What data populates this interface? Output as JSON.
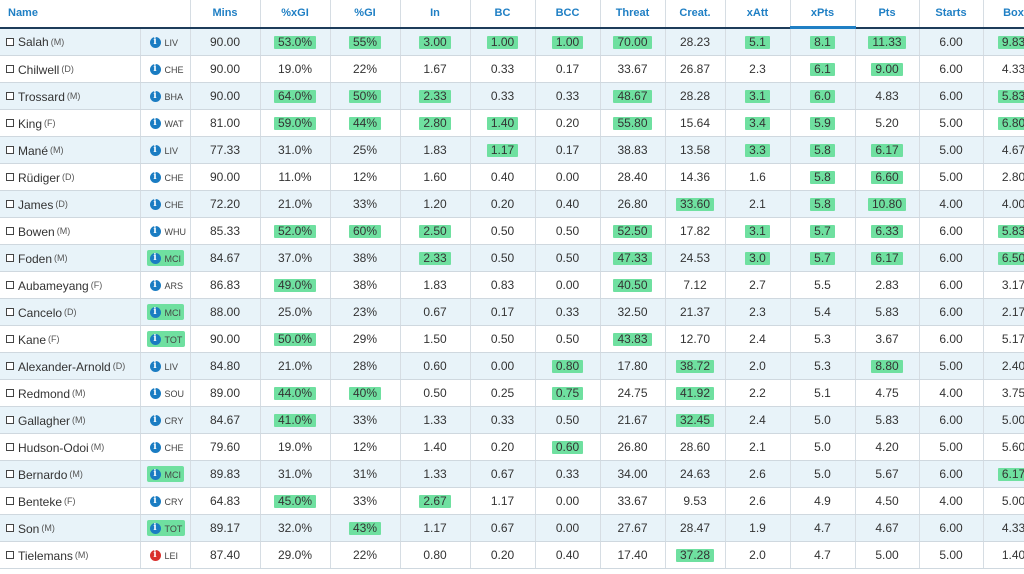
{
  "colors": {
    "header_text": "#1f7fc4",
    "highlight": "#6fe0a0",
    "info_blue": "#1a7cc2",
    "info_red": "#d9302c",
    "row_alt": "#e8f3f9"
  },
  "columns": [
    {
      "key": "name",
      "label": "Name"
    },
    {
      "key": "mins",
      "label": "Mins"
    },
    {
      "key": "xgi_pct",
      "label": "%xGI"
    },
    {
      "key": "gi_pct",
      "label": "%GI"
    },
    {
      "key": "in",
      "label": "In"
    },
    {
      "key": "bc",
      "label": "BC"
    },
    {
      "key": "bcc",
      "label": "BCC"
    },
    {
      "key": "threat",
      "label": "Threat"
    },
    {
      "key": "creat",
      "label": "Creat."
    },
    {
      "key": "xatt",
      "label": "xAtt"
    },
    {
      "key": "xpts",
      "label": "xPts"
    },
    {
      "key": "pts",
      "label": "Pts"
    },
    {
      "key": "starts",
      "label": "Starts"
    },
    {
      "key": "box",
      "label": "Box"
    }
  ],
  "sorted_column": "xpts",
  "rows": [
    {
      "name": "Salah",
      "pos": "(M)",
      "team": "LIV",
      "info": "blue",
      "mins": "90.00",
      "xgi_pct": "53.0%",
      "gi_pct": "55%",
      "in": "3.00",
      "bc": "1.00",
      "bcc": "1.00",
      "threat": "70.00",
      "creat": "28.23",
      "xatt": "5.1",
      "xpts": "8.1",
      "pts": "11.33",
      "starts": "6.00",
      "box": "9.83",
      "hl": [
        "xgi_pct",
        "gi_pct",
        "in",
        "bc",
        "bcc",
        "threat",
        "xatt",
        "xpts",
        "pts",
        "box"
      ]
    },
    {
      "name": "Chilwell",
      "pos": "(D)",
      "team": "CHE",
      "info": "blue",
      "mins": "90.00",
      "xgi_pct": "19.0%",
      "gi_pct": "22%",
      "in": "1.67",
      "bc": "0.33",
      "bcc": "0.17",
      "threat": "33.67",
      "creat": "26.87",
      "xatt": "2.3",
      "xpts": "6.1",
      "pts": "9.00",
      "starts": "6.00",
      "box": "4.33",
      "hl": [
        "xpts",
        "pts"
      ]
    },
    {
      "name": "Trossard",
      "pos": "(M)",
      "team": "BHA",
      "info": "blue",
      "mins": "90.00",
      "xgi_pct": "64.0%",
      "gi_pct": "50%",
      "in": "2.33",
      "bc": "0.33",
      "bcc": "0.33",
      "threat": "48.67",
      "creat": "28.28",
      "xatt": "3.1",
      "xpts": "6.0",
      "pts": "4.83",
      "starts": "6.00",
      "box": "5.83",
      "hl": [
        "xgi_pct",
        "gi_pct",
        "in",
        "threat",
        "xatt",
        "xpts",
        "box"
      ]
    },
    {
      "name": "King",
      "pos": "(F)",
      "team": "WAT",
      "info": "blue",
      "mins": "81.00",
      "xgi_pct": "59.0%",
      "gi_pct": "44%",
      "in": "2.80",
      "bc": "1.40",
      "bcc": "0.20",
      "threat": "55.80",
      "creat": "15.64",
      "xatt": "3.4",
      "xpts": "5.9",
      "pts": "5.20",
      "starts": "5.00",
      "box": "6.80",
      "hl": [
        "xgi_pct",
        "gi_pct",
        "in",
        "bc",
        "threat",
        "xatt",
        "xpts",
        "box"
      ]
    },
    {
      "name": "Mané",
      "pos": "(M)",
      "team": "LIV",
      "info": "blue",
      "mins": "77.33",
      "xgi_pct": "31.0%",
      "gi_pct": "25%",
      "in": "1.83",
      "bc": "1.17",
      "bcc": "0.17",
      "threat": "38.83",
      "creat": "13.58",
      "xatt": "3.3",
      "xpts": "5.8",
      "pts": "6.17",
      "starts": "5.00",
      "box": "4.67",
      "hl": [
        "bc",
        "xatt",
        "xpts",
        "pts"
      ]
    },
    {
      "name": "Rüdiger",
      "pos": "(D)",
      "team": "CHE",
      "info": "blue",
      "mins": "90.00",
      "xgi_pct": "11.0%",
      "gi_pct": "12%",
      "in": "1.60",
      "bc": "0.40",
      "bcc": "0.00",
      "threat": "28.40",
      "creat": "14.36",
      "xatt": "1.6",
      "xpts": "5.8",
      "pts": "6.60",
      "starts": "5.00",
      "box": "2.80",
      "hl": [
        "xpts",
        "pts"
      ]
    },
    {
      "name": "James",
      "pos": "(D)",
      "team": "CHE",
      "info": "blue",
      "mins": "72.20",
      "xgi_pct": "21.0%",
      "gi_pct": "33%",
      "in": "1.20",
      "bc": "0.20",
      "bcc": "0.40",
      "threat": "26.80",
      "creat": "33.60",
      "xatt": "2.1",
      "xpts": "5.8",
      "pts": "10.80",
      "starts": "4.00",
      "box": "4.00",
      "hl": [
        "creat",
        "xpts",
        "pts"
      ]
    },
    {
      "name": "Bowen",
      "pos": "(M)",
      "team": "WHU",
      "info": "blue",
      "mins": "85.33",
      "xgi_pct": "52.0%",
      "gi_pct": "60%",
      "in": "2.50",
      "bc": "0.50",
      "bcc": "0.50",
      "threat": "52.50",
      "creat": "17.82",
      "xatt": "3.1",
      "xpts": "5.7",
      "pts": "6.33",
      "starts": "6.00",
      "box": "5.83",
      "hl": [
        "xgi_pct",
        "gi_pct",
        "in",
        "threat",
        "xatt",
        "xpts",
        "pts",
        "box"
      ]
    },
    {
      "name": "Foden",
      "pos": "(M)",
      "team": "MCI",
      "info": "blue",
      "mins": "84.67",
      "xgi_pct": "37.0%",
      "gi_pct": "38%",
      "in": "2.33",
      "bc": "0.50",
      "bcc": "0.50",
      "threat": "47.33",
      "creat": "24.53",
      "xatt": "3.0",
      "xpts": "5.7",
      "pts": "6.17",
      "starts": "6.00",
      "box": "6.50",
      "hl": [
        "team",
        "in",
        "threat",
        "xatt",
        "xpts",
        "pts",
        "box"
      ]
    },
    {
      "name": "Aubameyang",
      "pos": "(F)",
      "team": "ARS",
      "info": "blue",
      "mins": "86.83",
      "xgi_pct": "49.0%",
      "gi_pct": "38%",
      "in": "1.83",
      "bc": "0.83",
      "bcc": "0.00",
      "threat": "40.50",
      "creat": "7.12",
      "xatt": "2.7",
      "xpts": "5.5",
      "pts": "2.83",
      "starts": "6.00",
      "box": "3.17",
      "hl": [
        "xgi_pct",
        "threat"
      ]
    },
    {
      "name": "Cancelo",
      "pos": "(D)",
      "team": "MCI",
      "info": "blue",
      "mins": "88.00",
      "xgi_pct": "25.0%",
      "gi_pct": "23%",
      "in": "0.67",
      "bc": "0.17",
      "bcc": "0.33",
      "threat": "32.50",
      "creat": "21.37",
      "xatt": "2.3",
      "xpts": "5.4",
      "pts": "5.83",
      "starts": "6.00",
      "box": "2.17",
      "hl": [
        "team"
      ]
    },
    {
      "name": "Kane",
      "pos": "(F)",
      "team": "TOT",
      "info": "blue",
      "mins": "90.00",
      "xgi_pct": "50.0%",
      "gi_pct": "29%",
      "in": "1.50",
      "bc": "0.50",
      "bcc": "0.50",
      "threat": "43.83",
      "creat": "12.70",
      "xatt": "2.4",
      "xpts": "5.3",
      "pts": "3.67",
      "starts": "6.00",
      "box": "5.17",
      "hl": [
        "team",
        "xgi_pct",
        "threat"
      ]
    },
    {
      "name": "Alexander-Arnold",
      "pos": "(D)",
      "team": "LIV",
      "info": "blue",
      "mins": "84.80",
      "xgi_pct": "21.0%",
      "gi_pct": "28%",
      "in": "0.60",
      "bc": "0.00",
      "bcc": "0.80",
      "threat": "17.80",
      "creat": "38.72",
      "xatt": "2.0",
      "xpts": "5.3",
      "pts": "8.80",
      "starts": "5.00",
      "box": "2.40",
      "hl": [
        "bcc",
        "creat",
        "pts"
      ]
    },
    {
      "name": "Redmond",
      "pos": "(M)",
      "team": "SOU",
      "info": "blue",
      "mins": "89.00",
      "xgi_pct": "44.0%",
      "gi_pct": "40%",
      "in": "0.50",
      "bc": "0.25",
      "bcc": "0.75",
      "threat": "24.75",
      "creat": "41.92",
      "xatt": "2.2",
      "xpts": "5.1",
      "pts": "4.75",
      "starts": "4.00",
      "box": "3.75",
      "hl": [
        "xgi_pct",
        "gi_pct",
        "bcc",
        "creat"
      ]
    },
    {
      "name": "Gallagher",
      "pos": "(M)",
      "team": "CRY",
      "info": "blue",
      "mins": "84.67",
      "xgi_pct": "41.0%",
      "gi_pct": "33%",
      "in": "1.33",
      "bc": "0.33",
      "bcc": "0.50",
      "threat": "21.67",
      "creat": "32.45",
      "xatt": "2.4",
      "xpts": "5.0",
      "pts": "5.83",
      "starts": "6.00",
      "box": "5.00",
      "hl": [
        "xgi_pct",
        "creat"
      ]
    },
    {
      "name": "Hudson-Odoi",
      "pos": "(M)",
      "team": "CHE",
      "info": "blue",
      "mins": "79.60",
      "xgi_pct": "19.0%",
      "gi_pct": "12%",
      "in": "1.40",
      "bc": "0.20",
      "bcc": "0.60",
      "threat": "26.80",
      "creat": "28.60",
      "xatt": "2.1",
      "xpts": "5.0",
      "pts": "4.20",
      "starts": "5.00",
      "box": "5.60",
      "hl": [
        "bcc"
      ]
    },
    {
      "name": "Bernardo",
      "pos": "(M)",
      "team": "MCI",
      "info": "blue",
      "mins": "89.83",
      "xgi_pct": "31.0%",
      "gi_pct": "31%",
      "in": "1.33",
      "bc": "0.67",
      "bcc": "0.33",
      "threat": "34.00",
      "creat": "24.63",
      "xatt": "2.6",
      "xpts": "5.0",
      "pts": "5.67",
      "starts": "6.00",
      "box": "6.17",
      "hl": [
        "team",
        "box"
      ]
    },
    {
      "name": "Benteke",
      "pos": "(F)",
      "team": "CRY",
      "info": "blue",
      "mins": "64.83",
      "xgi_pct": "45.0%",
      "gi_pct": "33%",
      "in": "2.67",
      "bc": "1.17",
      "bcc": "0.00",
      "threat": "33.67",
      "creat": "9.53",
      "xatt": "2.6",
      "xpts": "4.9",
      "pts": "4.50",
      "starts": "4.00",
      "box": "5.00",
      "hl": [
        "xgi_pct",
        "in"
      ]
    },
    {
      "name": "Son",
      "pos": "(M)",
      "team": "TOT",
      "info": "blue",
      "mins": "89.17",
      "xgi_pct": "32.0%",
      "gi_pct": "43%",
      "in": "1.17",
      "bc": "0.67",
      "bcc": "0.00",
      "threat": "27.67",
      "creat": "28.47",
      "xatt": "1.9",
      "xpts": "4.7",
      "pts": "4.67",
      "starts": "6.00",
      "box": "4.33",
      "hl": [
        "team",
        "gi_pct"
      ]
    },
    {
      "name": "Tielemans",
      "pos": "(M)",
      "team": "LEI",
      "info": "red",
      "mins": "87.40",
      "xgi_pct": "29.0%",
      "gi_pct": "22%",
      "in": "0.80",
      "bc": "0.20",
      "bcc": "0.40",
      "threat": "17.40",
      "creat": "37.28",
      "xatt": "2.0",
      "xpts": "4.7",
      "pts": "5.00",
      "starts": "5.00",
      "box": "1.40",
      "hl": [
        "creat"
      ]
    }
  ]
}
